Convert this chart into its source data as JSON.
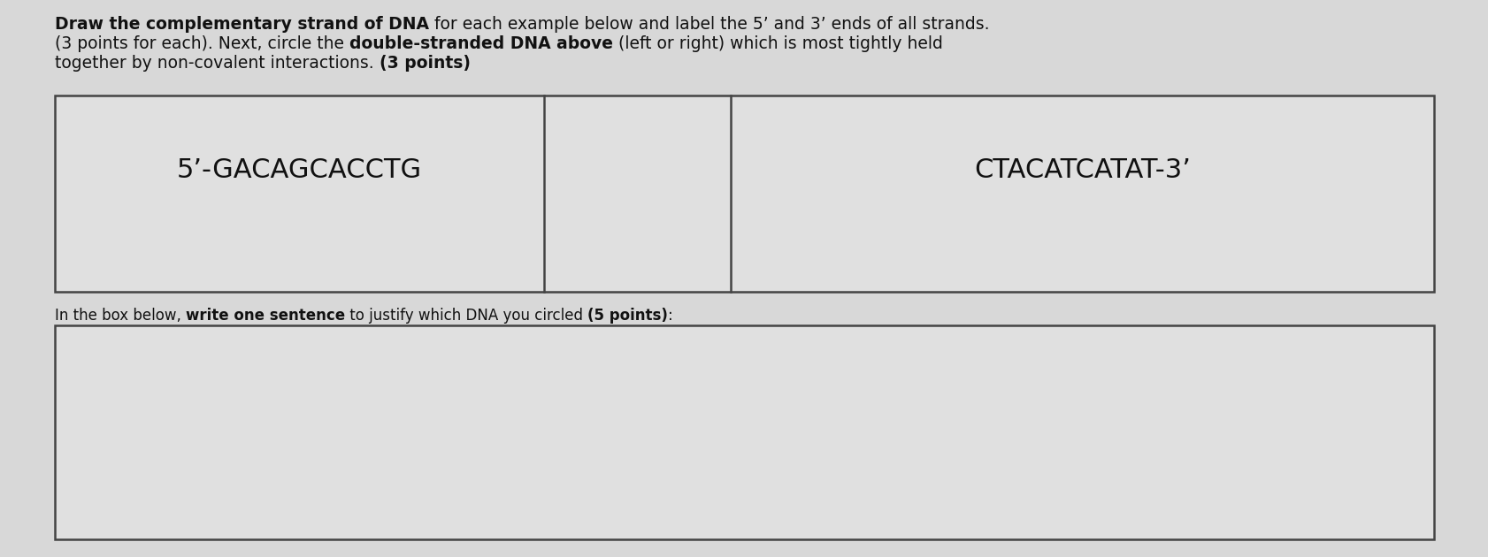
{
  "background_color": "#d8d8d8",
  "text_color": "#111111",
  "box_border_color": "#444444",
  "box_bg_color": "#e0e0e0",
  "left_dna": "5’-GACAGCACCTG",
  "right_dna": "CTACATCATAT-3’",
  "font_size_title": 13.5,
  "font_size_dna": 22,
  "font_size_bottom": 12,
  "title_segments_line1": [
    {
      "text": "Draw the complementary strand of DNA",
      "bold": true
    },
    {
      "text": " for each example below and label the 5’ and 3’ ends of all strands.",
      "bold": false
    }
  ],
  "title_segments_line2": [
    {
      "text": "(3 points for each). Next, circle the ",
      "bold": false
    },
    {
      "text": "double-stranded DNA above",
      "bold": true
    },
    {
      "text": " (left or right) which is most tightly held",
      "bold": false
    }
  ],
  "title_segments_line3": [
    {
      "text": "together by non-covalent interactions. ",
      "bold": false
    },
    {
      "text": "(3 points)",
      "bold": true
    }
  ],
  "bottom_segments": [
    {
      "text": "In the box below, ",
      "bold": false
    },
    {
      "text": "write one sentence",
      "bold": true
    },
    {
      "text": " to justify which DNA you circled ",
      "bold": false
    },
    {
      "text": "(5 points)",
      "bold": true
    },
    {
      "text": ":",
      "bold": false
    }
  ]
}
